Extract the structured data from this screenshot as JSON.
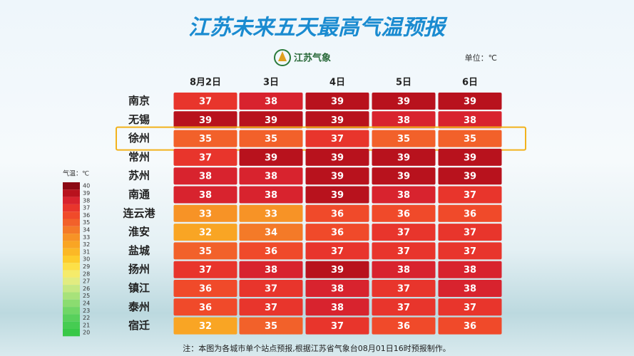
{
  "header": {
    "title": "江苏未来五天最高气温预报",
    "logo_text": "江苏气象",
    "unit": "单位：℃"
  },
  "table": {
    "columns": [
      "8月2日",
      "3日",
      "4日",
      "5日",
      "6日"
    ],
    "rows": [
      {
        "city": "南京",
        "values": [
          37,
          38,
          39,
          39,
          39
        ]
      },
      {
        "city": "无锡",
        "values": [
          39,
          39,
          39,
          38,
          38
        ]
      },
      {
        "city": "徐州",
        "values": [
          35,
          35,
          37,
          35,
          35
        ],
        "highlight": true
      },
      {
        "city": "常州",
        "values": [
          37,
          39,
          39,
          39,
          39
        ]
      },
      {
        "city": "苏州",
        "values": [
          38,
          38,
          39,
          39,
          39
        ]
      },
      {
        "city": "南通",
        "values": [
          38,
          38,
          39,
          38,
          37
        ]
      },
      {
        "city": "连云港",
        "values": [
          33,
          33,
          36,
          36,
          36
        ]
      },
      {
        "city": "淮安",
        "values": [
          32,
          34,
          36,
          37,
          37
        ]
      },
      {
        "city": "盐城",
        "values": [
          35,
          36,
          37,
          37,
          37
        ]
      },
      {
        "city": "扬州",
        "values": [
          37,
          38,
          39,
          38,
          38
        ]
      },
      {
        "city": "镇江",
        "values": [
          36,
          37,
          38,
          37,
          38
        ]
      },
      {
        "city": "泰州",
        "values": [
          36,
          37,
          38,
          37,
          37
        ]
      },
      {
        "city": "宿迁",
        "values": [
          32,
          35,
          37,
          36,
          36
        ]
      }
    ]
  },
  "legend": {
    "title": "气温：℃",
    "levels": [
      {
        "value": 40,
        "color": "#8b0a14"
      },
      {
        "value": 39,
        "color": "#b8121d"
      },
      {
        "value": 38,
        "color": "#d8232e"
      },
      {
        "value": 37,
        "color": "#e8352c"
      },
      {
        "value": 36,
        "color": "#f04a2a"
      },
      {
        "value": 35,
        "color": "#f2612a"
      },
      {
        "value": 34,
        "color": "#f47a28"
      },
      {
        "value": 33,
        "color": "#f79326"
      },
      {
        "value": 32,
        "color": "#f9a524"
      },
      {
        "value": 31,
        "color": "#fbb826"
      },
      {
        "value": 30,
        "color": "#fdcc2c"
      },
      {
        "value": 29,
        "color": "#fde047"
      },
      {
        "value": 28,
        "color": "#f5eb6a"
      },
      {
        "value": 27,
        "color": "#e2ec80"
      },
      {
        "value": 26,
        "color": "#c6e882"
      },
      {
        "value": 25,
        "color": "#a8e27a"
      },
      {
        "value": 24,
        "color": "#8bdc70"
      },
      {
        "value": 23,
        "color": "#70d666"
      },
      {
        "value": 22,
        "color": "#58d05c"
      },
      {
        "value": 21,
        "color": "#46cc52"
      },
      {
        "value": 20,
        "color": "#38c848"
      }
    ]
  },
  "note": "注：本图为各城市单个站点预报,根据江苏省气象台08月01日16时预报制作。"
}
